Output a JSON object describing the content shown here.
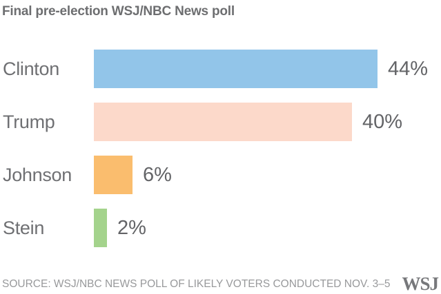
{
  "chart_data": {
    "type": "bar",
    "orientation": "horizontal",
    "title": "Final pre-election WSJ/NBC News poll",
    "categories": [
      "Clinton",
      "Trump",
      "Johnson",
      "Stein"
    ],
    "values": [
      44,
      40,
      6,
      2
    ],
    "value_labels": [
      "44%",
      "40%",
      "6%",
      "2%"
    ],
    "bar_colors": [
      "#92c5e9",
      "#fcd9ca",
      "#fabd6e",
      "#a4d38c"
    ],
    "xlim": [
      0,
      47
    ],
    "grid": false,
    "legend": false,
    "value_label_position": "right-of-bar"
  },
  "footer": {
    "source": "SOURCE: WSJ/NBC NEWS POLL OF LIKELY VOTERS CONDUCTED NOV. 3–5",
    "brand": "WSJ"
  },
  "colors": {
    "title_text": "#6d6e70",
    "category_text": "#6f7073",
    "value_text": "#636467",
    "source_text": "#98999b",
    "brand_text": "#77787b",
    "background": "#ffffff"
  }
}
